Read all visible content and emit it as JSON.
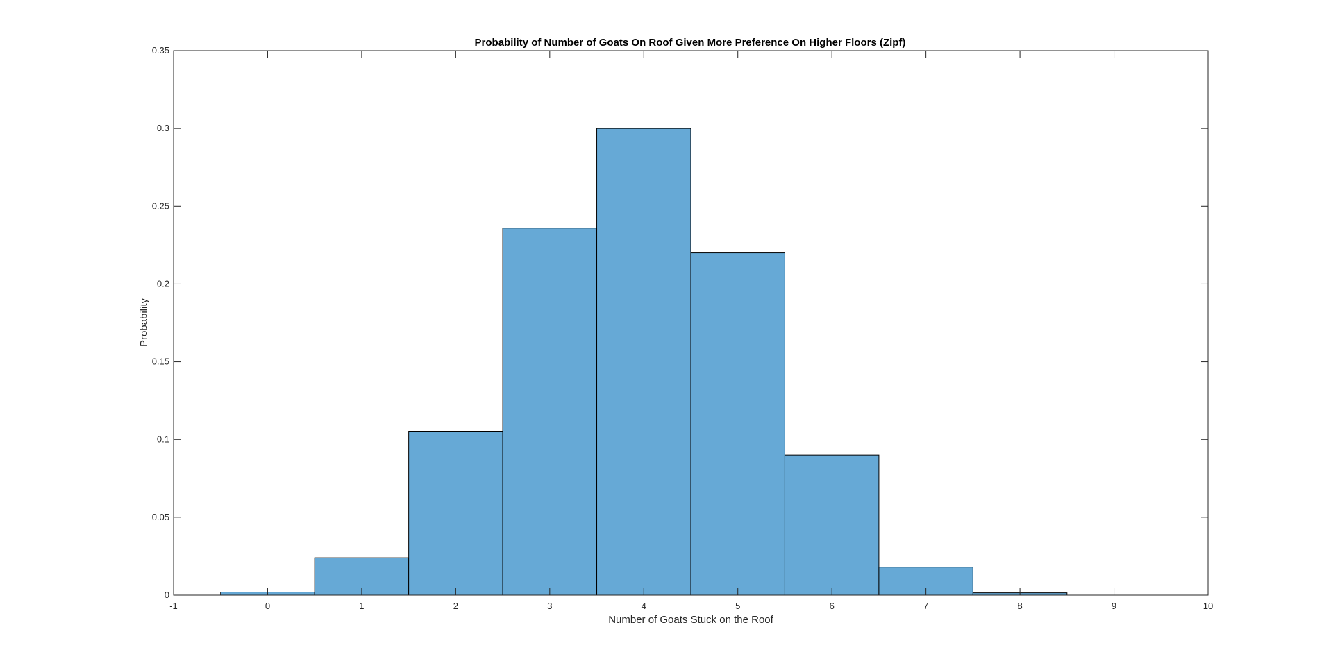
{
  "chart_data": {
    "type": "bar",
    "title": "Probability of Number of Goats On Roof Given More Preference On Higher Floors (Zipf)",
    "xlabel": "Number of Goats Stuck on the Roof",
    "ylabel": "Probability",
    "categories": [
      0,
      1,
      2,
      3,
      4,
      5,
      6,
      7,
      8,
      9
    ],
    "values": [
      0.002,
      0.024,
      0.105,
      0.236,
      0.3,
      0.22,
      0.09,
      0.018,
      0.0015,
      0.0
    ],
    "bin_width": 1,
    "xlim": [
      -1,
      10
    ],
    "ylim": [
      0,
      0.35
    ],
    "xticks": [
      "-1",
      "0",
      "1",
      "2",
      "3",
      "4",
      "5",
      "6",
      "7",
      "8",
      "9",
      "10"
    ],
    "yticks": [
      "0",
      "0.05",
      "0.1",
      "0.15",
      "0.2",
      "0.25",
      "0.3",
      "0.35"
    ],
    "grid": false,
    "legend": "none",
    "colors": {
      "bar_fill": "#66a9d6",
      "bar_edge": "#000000",
      "axis": "#262626"
    }
  }
}
